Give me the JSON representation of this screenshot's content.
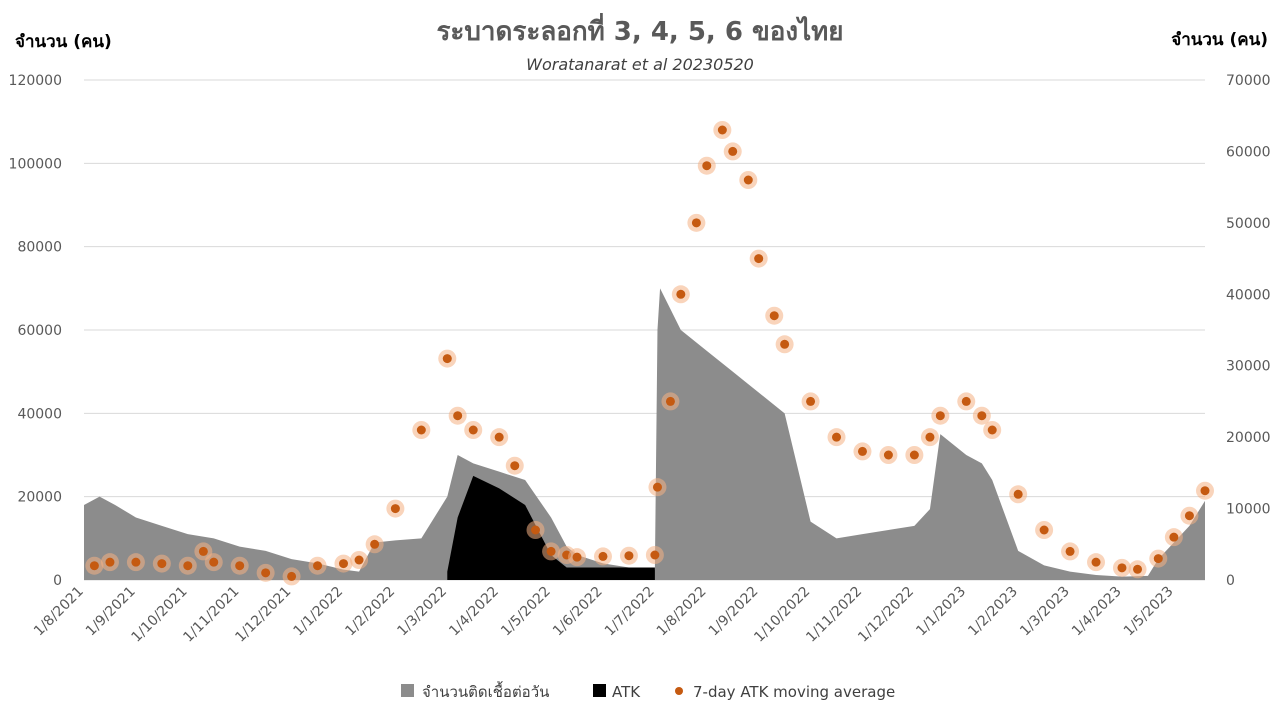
{
  "chart_data": {
    "type": "area",
    "title": "ระบาดระลอกที่ 3, 4, 5, 6 ของไทย",
    "subtitle": "Woratanarat et al 20230520",
    "y_left": {
      "label": "จำนวน (คน)",
      "ylim": [
        0,
        120000
      ],
      "ticks": [
        0,
        20000,
        40000,
        60000,
        80000,
        100000,
        120000
      ]
    },
    "y_right": {
      "label": "จำนวน (คน)",
      "ylim": [
        0,
        70000
      ],
      "ticks": [
        0,
        10000,
        20000,
        30000,
        40000,
        50000,
        60000,
        70000
      ]
    },
    "x_ticks": [
      "1/8/2021",
      "1/9/2021",
      "1/10/2021",
      "1/11/2021",
      "1/12/2021",
      "1/1/2022",
      "1/2/2022",
      "1/3/2022",
      "1/4/2022",
      "1/5/2022",
      "1/6/2022",
      "1/7/2022",
      "1/8/2022",
      "1/9/2022",
      "1/10/2022",
      "1/11/2022",
      "1/12/2022",
      "1/1/2023",
      "1/2/2023",
      "1/3/2023",
      "1/4/2023",
      "1/5/2023"
    ],
    "x_range_months": [
      0,
      21.6
    ],
    "legend": [
      {
        "name": "จำนวนติดเชื้อต่อวัน",
        "color": "#8c8c8c",
        "marker": "square"
      },
      {
        "name": "ATK",
        "color": "#000000",
        "marker": "square"
      },
      {
        "name": "7-day ATK moving average",
        "color": "#c55a11",
        "marker": "circle"
      }
    ],
    "series": [
      {
        "name": "จำนวนติดเชื้อต่อวัน",
        "axis": "left",
        "x_months": [
          0,
          0.3,
          0.6,
          1,
          1.5,
          2,
          2.5,
          3,
          3.5,
          4,
          4.5,
          5,
          5.3,
          5.6,
          6,
          6.5,
          7,
          7.2,
          7.5,
          8,
          8.5,
          9,
          9.3,
          9.5,
          10,
          10.5,
          11,
          11.05,
          11.1,
          11.3,
          11.5,
          12,
          12.5,
          13,
          13.5,
          14,
          14.5,
          15,
          15.5,
          16,
          16.3,
          16.5,
          17,
          17.3,
          17.5,
          18,
          18.5,
          19,
          19.5,
          20,
          20.5,
          20.7,
          21,
          21.3,
          21.6
        ],
        "values": [
          18000,
          20000,
          18000,
          15000,
          13000,
          11000,
          10000,
          8000,
          7000,
          5000,
          4000,
          2500,
          2000,
          9000,
          9500,
          10000,
          20000,
          30000,
          28000,
          26000,
          24000,
          15000,
          8000,
          6000,
          4000,
          3000,
          2500,
          60000,
          70000,
          65000,
          60000,
          55000,
          50000,
          45000,
          40000,
          14000,
          10000,
          11000,
          12000,
          13000,
          17000,
          35000,
          30000,
          28000,
          24000,
          7000,
          3500,
          2000,
          1200,
          800,
          1000,
          5000,
          9000,
          13000,
          19000
        ]
      },
      {
        "name": "ATK",
        "axis": "left",
        "x_months": [
          7,
          7.2,
          7.5,
          8,
          8.5,
          9,
          9.3,
          9.5,
          10,
          10.5,
          11
        ],
        "values": [
          2000,
          15000,
          25000,
          22000,
          18000,
          6000,
          3000,
          3000,
          3000,
          3000,
          3000
        ]
      },
      {
        "name": "7-day ATK moving average",
        "axis": "right",
        "x_months": [
          0.2,
          0.5,
          1,
          1.5,
          2,
          2.3,
          2.5,
          3,
          3.5,
          4,
          4.5,
          5,
          5.3,
          5.6,
          6,
          6.5,
          7,
          7.2,
          7.5,
          8,
          8.3,
          8.7,
          9,
          9.3,
          9.5,
          10,
          10.5,
          11,
          11.05,
          11.3,
          11.5,
          11.8,
          12,
          12.3,
          12.5,
          12.8,
          13,
          13.3,
          13.5,
          14,
          14.5,
          15,
          15.5,
          16,
          16.3,
          16.5,
          17,
          17.3,
          17.5,
          18,
          18.5,
          19,
          19.5,
          20,
          20.3,
          20.7,
          21,
          21.3,
          21.6
        ],
        "values": [
          2000,
          2500,
          2500,
          2300,
          2000,
          4000,
          2500,
          2000,
          1000,
          500,
          2000,
          2300,
          2800,
          5000,
          10000,
          21000,
          31000,
          23000,
          21000,
          20000,
          16000,
          7000,
          4000,
          3500,
          3200,
          3300,
          3400,
          3500,
          13000,
          25000,
          40000,
          50000,
          58000,
          63000,
          60000,
          56000,
          45000,
          37000,
          33000,
          25000,
          20000,
          18000,
          17500,
          17500,
          20000,
          23000,
          25000,
          23000,
          21000,
          12000,
          7000,
          4000,
          2500,
          1700,
          1500,
          3000,
          6000,
          9000,
          12500
        ]
      }
    ]
  }
}
